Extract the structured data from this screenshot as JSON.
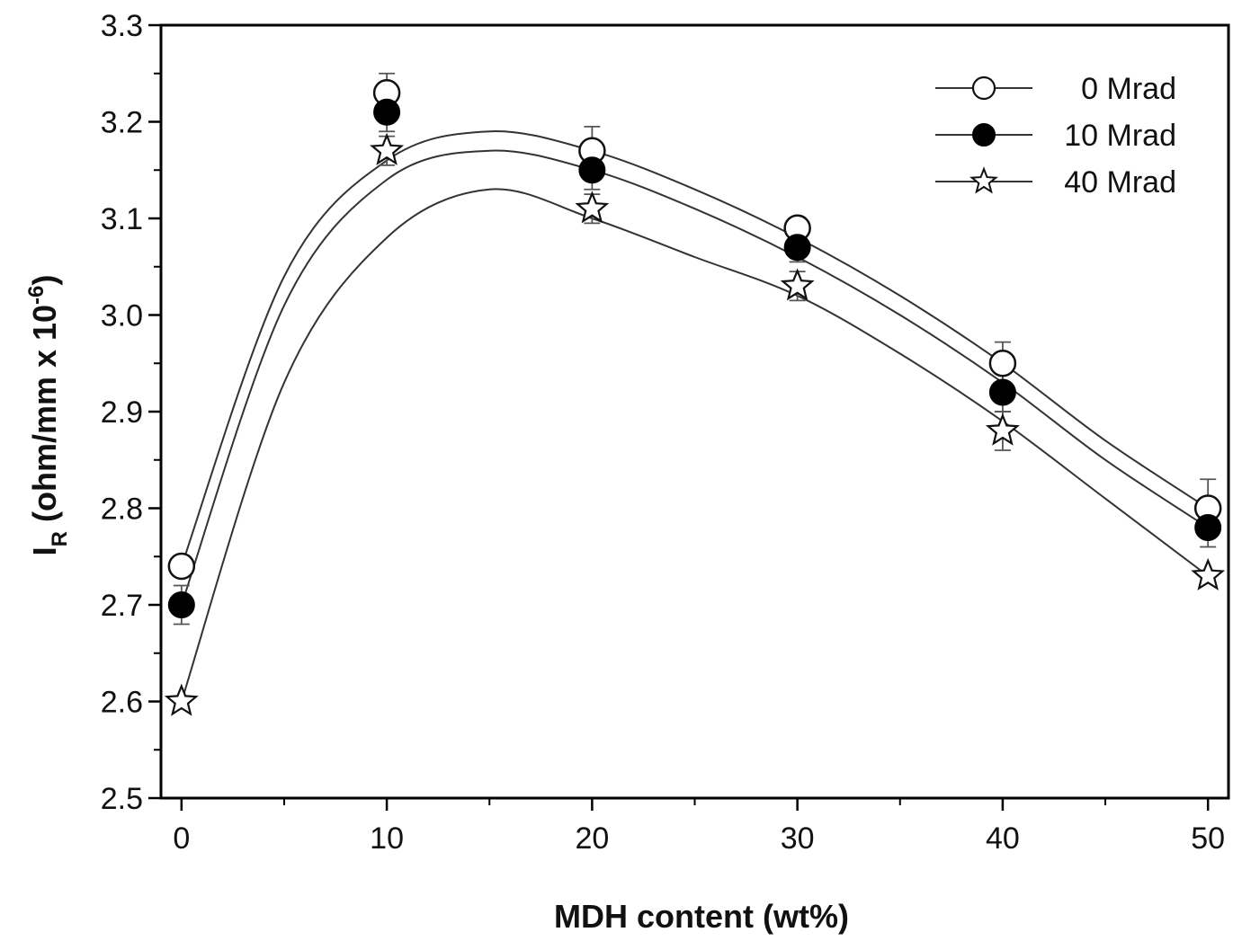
{
  "chart_data": {
    "type": "line",
    "title": "",
    "xlabel": "MDH content (wt%)",
    "ylabel": {
      "main": "I",
      "sub": "R",
      "units": " (ohm/mm x 10",
      "exp": "-6",
      "close": ")"
    },
    "x": [
      0,
      10,
      20,
      30,
      40,
      50
    ],
    "xlim": [
      -1,
      51
    ],
    "ylim": [
      2.5,
      3.3
    ],
    "xticks": [
      "0",
      "10",
      "20",
      "30",
      "40",
      "50"
    ],
    "yticks": [
      "2.5",
      "2.6",
      "2.7",
      "2.8",
      "2.9",
      "3.0",
      "3.1",
      "3.2",
      "3.3"
    ],
    "grid": false,
    "legend_position": "top-right",
    "series": [
      {
        "name": "0 Mrad",
        "marker": "open-circle",
        "values": [
          2.74,
          3.23,
          3.17,
          3.09,
          2.95,
          2.8
        ],
        "errors": [
          0.0,
          0.02,
          0.025,
          0.01,
          0.022,
          0.03
        ]
      },
      {
        "name": "10 Mrad",
        "marker": "filled-circle",
        "values": [
          2.7,
          3.21,
          3.15,
          3.07,
          2.92,
          2.78
        ],
        "errors": [
          0.02,
          0.02,
          0.02,
          0.015,
          0.02,
          0.02
        ]
      },
      {
        "name": "40 Mrad",
        "marker": "open-star",
        "values": [
          2.6,
          3.17,
          3.11,
          3.03,
          2.88,
          2.73
        ],
        "errors": [
          0.0,
          0.015,
          0.015,
          0.015,
          0.02,
          0.0
        ]
      }
    ],
    "fit_curves": [
      {
        "series": "0 Mrad",
        "x": [
          0,
          5,
          10,
          15,
          20,
          25,
          30,
          35,
          40,
          45,
          50
        ],
        "y": [
          2.74,
          3.04,
          3.16,
          3.19,
          3.17,
          3.13,
          3.08,
          3.02,
          2.95,
          2.87,
          2.8
        ]
      },
      {
        "series": "10 Mrad",
        "x": [
          0,
          5,
          10,
          15,
          20,
          25,
          30,
          35,
          40,
          45,
          50
        ],
        "y": [
          2.7,
          3.01,
          3.14,
          3.17,
          3.15,
          3.11,
          3.06,
          3.0,
          2.93,
          2.85,
          2.78
        ]
      },
      {
        "series": "40 Mrad",
        "x": [
          0,
          5,
          10,
          15,
          20,
          25,
          30,
          35,
          40,
          45,
          50
        ],
        "y": [
          2.6,
          2.93,
          3.08,
          3.13,
          3.1,
          3.06,
          3.02,
          2.96,
          2.89,
          2.81,
          2.73
        ]
      }
    ],
    "colors": {
      "line": "#333333",
      "marker_edge": "#111111",
      "filled": "#000000",
      "open_fill": "#ffffff",
      "axis": "#000000"
    }
  }
}
